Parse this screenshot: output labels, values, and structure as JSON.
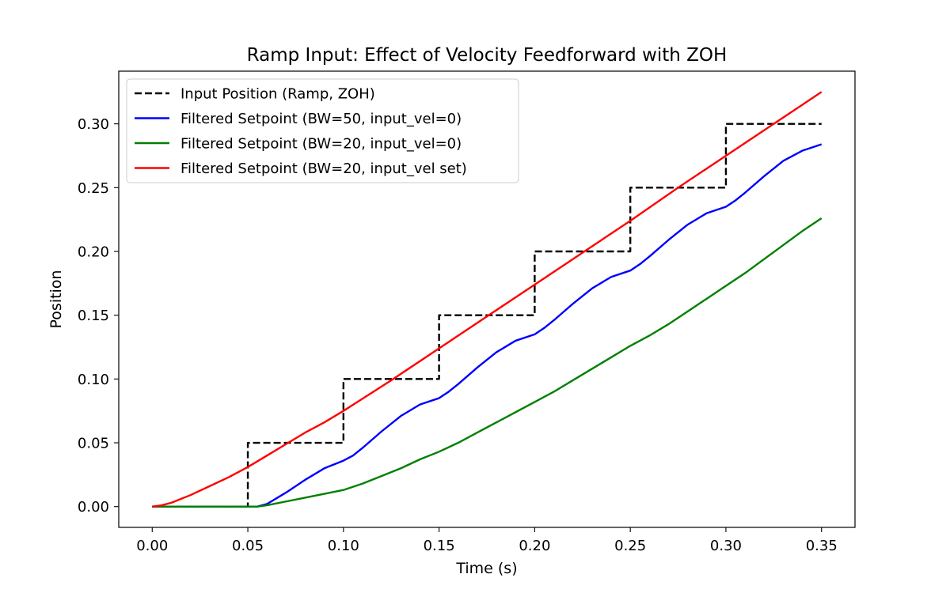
{
  "chart_data": {
    "type": "line",
    "title": "Ramp Input: Effect of Velocity Feedforward with ZOH",
    "xlabel": "Time (s)",
    "ylabel": "Position",
    "xlim": [
      -0.0175,
      0.3675
    ],
    "ylim": [
      -0.0163,
      0.3413
    ],
    "xticks": [
      0.0,
      0.05,
      0.1,
      0.15,
      0.2,
      0.25,
      0.3,
      0.35
    ],
    "xtick_labels": [
      "0.00",
      "0.05",
      "0.10",
      "0.15",
      "0.20",
      "0.25",
      "0.30",
      "0.35"
    ],
    "yticks": [
      0.0,
      0.05,
      0.1,
      0.15,
      0.2,
      0.25,
      0.3
    ],
    "ytick_labels": [
      "0.00",
      "0.05",
      "0.10",
      "0.15",
      "0.20",
      "0.25",
      "0.30"
    ],
    "grid": false,
    "legend_position": "upper-left",
    "series": [
      {
        "name": "Input Position (Ramp, ZOH)",
        "color": "#000000",
        "style": "dashed",
        "x": [
          0.0,
          0.05,
          0.05,
          0.1,
          0.1,
          0.15,
          0.15,
          0.2,
          0.2,
          0.25,
          0.25,
          0.3,
          0.3,
          0.35
        ],
        "y": [
          0.0,
          0.0,
          0.05,
          0.05,
          0.1,
          0.1,
          0.15,
          0.15,
          0.2,
          0.2,
          0.25,
          0.25,
          0.3,
          0.3
        ]
      },
      {
        "name": "Filtered Setpoint (BW=50, input_vel=0)",
        "color": "#0000ff",
        "style": "solid",
        "x": [
          0.0,
          0.05,
          0.055,
          0.06,
          0.07,
          0.08,
          0.09,
          0.1,
          0.105,
          0.11,
          0.12,
          0.13,
          0.14,
          0.15,
          0.155,
          0.16,
          0.17,
          0.18,
          0.19,
          0.2,
          0.205,
          0.21,
          0.22,
          0.23,
          0.24,
          0.25,
          0.255,
          0.26,
          0.27,
          0.28,
          0.29,
          0.3,
          0.305,
          0.31,
          0.32,
          0.33,
          0.34,
          0.35
        ],
        "y": [
          0.0,
          0.0,
          0.0,
          0.002,
          0.011,
          0.021,
          0.03,
          0.036,
          0.04,
          0.046,
          0.059,
          0.071,
          0.08,
          0.085,
          0.09,
          0.096,
          0.109,
          0.121,
          0.13,
          0.135,
          0.14,
          0.146,
          0.159,
          0.171,
          0.18,
          0.185,
          0.19,
          0.196,
          0.209,
          0.221,
          0.23,
          0.235,
          0.24,
          0.246,
          0.259,
          0.271,
          0.279,
          0.284
        ]
      },
      {
        "name": "Filtered Setpoint (BW=20, input_vel=0)",
        "color": "#008000",
        "style": "solid",
        "x": [
          0.0,
          0.05,
          0.055,
          0.06,
          0.07,
          0.08,
          0.09,
          0.1,
          0.11,
          0.12,
          0.13,
          0.14,
          0.15,
          0.16,
          0.17,
          0.18,
          0.19,
          0.2,
          0.21,
          0.22,
          0.23,
          0.24,
          0.25,
          0.26,
          0.27,
          0.28,
          0.29,
          0.3,
          0.31,
          0.32,
          0.33,
          0.34,
          0.35
        ],
        "y": [
          0.0,
          0.0,
          0.0,
          0.001,
          0.004,
          0.007,
          0.01,
          0.013,
          0.018,
          0.024,
          0.03,
          0.037,
          0.043,
          0.05,
          0.058,
          0.066,
          0.074,
          0.082,
          0.09,
          0.099,
          0.108,
          0.117,
          0.126,
          0.134,
          0.143,
          0.153,
          0.163,
          0.173,
          0.183,
          0.194,
          0.205,
          0.216,
          0.226
        ]
      },
      {
        "name": "Filtered Setpoint (BW=20, input_vel set)",
        "color": "#ff0000",
        "style": "solid",
        "x": [
          0.0,
          0.005,
          0.01,
          0.02,
          0.03,
          0.04,
          0.05,
          0.06,
          0.07,
          0.08,
          0.09,
          0.1,
          0.125,
          0.15,
          0.175,
          0.2,
          0.225,
          0.25,
          0.275,
          0.3,
          0.325,
          0.35
        ],
        "y": [
          0.0,
          0.001,
          0.003,
          0.009,
          0.016,
          0.023,
          0.031,
          0.04,
          0.049,
          0.058,
          0.066,
          0.075,
          0.099,
          0.124,
          0.149,
          0.174,
          0.199,
          0.224,
          0.25,
          0.275,
          0.3,
          0.325
        ]
      }
    ]
  }
}
